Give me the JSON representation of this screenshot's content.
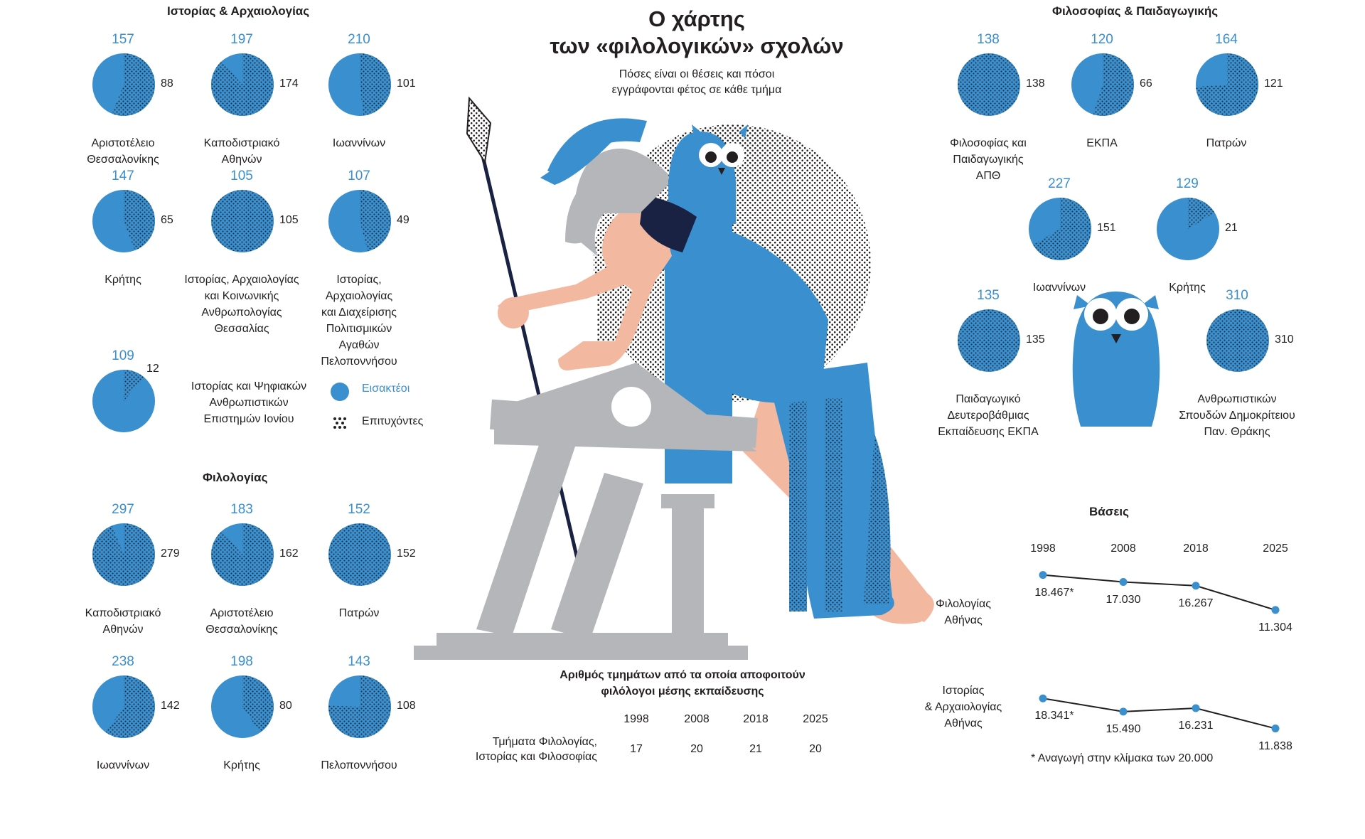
{
  "title_line1": "Ο χάρτης",
  "title_line2": "των «φιλολογικών» σχολών",
  "subtitle_line1": "Πόσες είναι οι θέσεις και πόσοι",
  "subtitle_line2": "εγγράφονται φέτος σε κάθε τμήμα",
  "legend": {
    "admitted": "Εισακτέοι",
    "successful": "Επιτυχόντες"
  },
  "colors": {
    "admitted": "#3a8fce",
    "successful_dots": "#1a2a3a",
    "ink": "#231f20"
  },
  "illustration": "athena-with-spear-owl-and-ruined-temple",
  "chart_data": [
    {
      "type": "pie",
      "title": "Ιστορίας & Αρχαιολογίας",
      "items": [
        {
          "admitted": 157,
          "successful": 88,
          "name": [
            "Αριστοτέλειο",
            "Θεσσαλονίκης"
          ]
        },
        {
          "admitted": 197,
          "successful": 174,
          "name": [
            "Καποδιστριακό",
            "Αθηνών"
          ]
        },
        {
          "admitted": 210,
          "successful": 101,
          "name": [
            "Ιωαννίνων"
          ]
        },
        {
          "admitted": 147,
          "successful": 65,
          "name": [
            "Κρήτης"
          ]
        },
        {
          "admitted": 105,
          "successful": 105,
          "name": [
            "Ιστορίας, Αρχαιολογίας",
            "και Κοινωνικής",
            "Ανθρωπολογίας",
            "Θεσσαλίας"
          ]
        },
        {
          "admitted": 107,
          "successful": 49,
          "name": [
            "Ιστορίας,",
            "Αρχαιολογίας",
            "και Διαχείρισης",
            "Πολιτισμικών",
            "Αγαθών",
            "Πελοποννήσου"
          ]
        },
        {
          "admitted": 109,
          "successful": 12,
          "name": [
            "Ιστορίας και Ψηφιακών",
            "Ανθρωπιστικών",
            "Επιστημών Ιονίου"
          ]
        }
      ]
    },
    {
      "type": "pie",
      "title": "Φιλολογίας",
      "items": [
        {
          "admitted": 297,
          "successful": 279,
          "name": [
            "Καποδιστριακό",
            "Αθηνών"
          ]
        },
        {
          "admitted": 183,
          "successful": 162,
          "name": [
            "Αριστοτέλειο",
            "Θεσσαλονίκης"
          ]
        },
        {
          "admitted": 152,
          "successful": 152,
          "name": [
            "Πατρών"
          ]
        },
        {
          "admitted": 238,
          "successful": 142,
          "name": [
            "Ιωαννίνων"
          ]
        },
        {
          "admitted": 198,
          "successful": 80,
          "name": [
            "Κρήτης"
          ]
        },
        {
          "admitted": 143,
          "successful": 108,
          "name": [
            "Πελοποννήσου"
          ]
        }
      ]
    },
    {
      "type": "pie",
      "title": "Φιλοσοφίας & Παιδαγωγικής",
      "items": [
        {
          "admitted": 138,
          "successful": 138,
          "name": [
            "Φιλοσοφίας και",
            "Παιδαγωγικής",
            "ΑΠΘ"
          ]
        },
        {
          "admitted": 120,
          "successful": 66,
          "name": [
            "ΕΚΠΑ"
          ]
        },
        {
          "admitted": 164,
          "successful": 121,
          "name": [
            "Πατρών"
          ]
        },
        {
          "admitted": 227,
          "successful": 151,
          "name": [
            "Ιωαννίνων"
          ]
        },
        {
          "admitted": 129,
          "successful": 21,
          "name": [
            "Κρήτης"
          ]
        },
        {
          "admitted": 135,
          "successful": 135,
          "name": [
            "Παιδαγωγικό",
            "Δευτεροβάθμιας",
            "Εκπαίδευσης ΕΚΠΑ"
          ]
        },
        {
          "admitted": 310,
          "successful": 310,
          "name": [
            "Ανθρωπιστικών",
            "Σπουδών Δημοκρίτειου",
            "Παν. Θράκης"
          ]
        }
      ]
    },
    {
      "type": "line",
      "title": "Βάσεις",
      "categories": [
        "1998",
        "2008",
        "2018",
        "2025"
      ],
      "series": [
        {
          "name": [
            "Φιλολογίας",
            "Αθήνας"
          ],
          "values": [
            18467,
            17030,
            16267,
            11304
          ],
          "labels": [
            "18.467*",
            "17.030",
            "16.267",
            "11.304"
          ]
        },
        {
          "name": [
            "Ιστορίας",
            "& Αρχαιολογίας",
            "Αθήνας"
          ],
          "values": [
            18341,
            15490,
            16231,
            11838
          ],
          "labels": [
            "18.341*",
            "15.490",
            "16.231",
            "11.838"
          ]
        }
      ],
      "footnote": "* Αναγωγή στην κλίμακα των 20.000"
    },
    {
      "type": "table",
      "title": [
        "Αριθμός τμημάτων από τα οποία αποφοιτούν",
        "φιλόλογοι μέσης εκπαίδευσης"
      ],
      "columns": [
        "1998",
        "2008",
        "2018",
        "2025"
      ],
      "row_label": [
        "Τμήματα Φιλολογίας,",
        "Ιστορίας και Φιλοσοφίας"
      ],
      "values": [
        17,
        20,
        21,
        20
      ]
    }
  ]
}
